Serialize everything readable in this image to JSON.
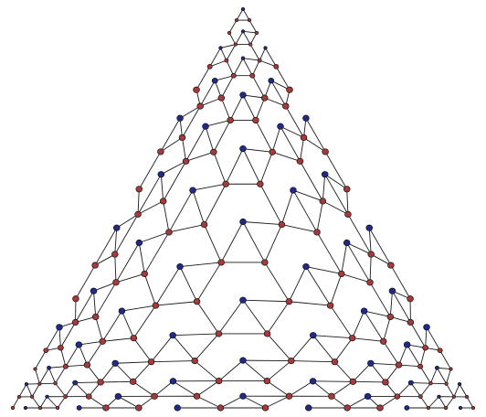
{
  "figure": {
    "type": "graph-embedding",
    "description_kind": "triangular hexagonal lattice with three flared corners"
  },
  "colors": {
    "background": "#ffffff",
    "edge": "#1a1a1a",
    "node_primary": "#a63a3a",
    "node_secondary": "#1f2a8a",
    "node_stroke": "#111111"
  },
  "lattice": {
    "rows": 17,
    "corner_tail_layers": 6
  }
}
